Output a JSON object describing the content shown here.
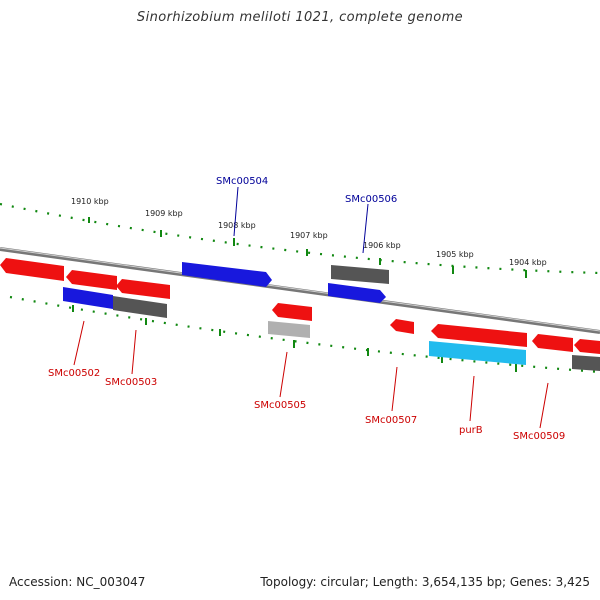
{
  "title": "Sinorhizobium meliloti 1021, complete genome",
  "footer": {
    "accession": "Accession: NC_003047",
    "stats": "Topology: circular; Length: 3,654,135 bp; Genes: 3,425"
  },
  "colors": {
    "forward": "#ee1111",
    "reverse": "#1818dd",
    "other_dark": "#555555",
    "other_light": "#b0b0b0",
    "rna": "#22bbee",
    "tick_dots": "#118811",
    "backbone": "#777777",
    "label_forward": "#000099",
    "label_reverse": "#cc0000"
  },
  "scale_labels": [
    "1910 kbp",
    "1909 kbp",
    "1908 kbp",
    "1907 kbp",
    "1906 kbp",
    "1905 kbp",
    "1904 kbp"
  ],
  "gene_labels": {
    "top": [
      "SMc00504",
      "SMc00506"
    ],
    "bottom": [
      "SMc00502",
      "SMc00503",
      "SMc00505",
      "SMc00507",
      "purB",
      "SMc00509"
    ]
  }
}
